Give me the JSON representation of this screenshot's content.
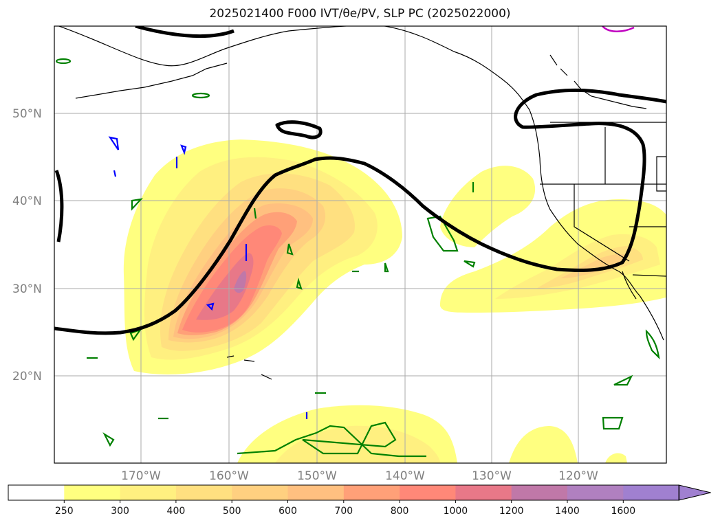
{
  "title": "2025021400 F000 IVT/θe/PV, SLP PC (2025022000)",
  "map": {
    "lat_labels": [
      "50°N",
      "40°N",
      "30°N",
      "20°N"
    ],
    "lon_labels": [
      "170°W",
      "160°W",
      "150°W",
      "140°W",
      "130°W",
      "120°W"
    ],
    "grid": true,
    "colors": {
      "slp_contour": "#000000",
      "pv_contour": "#008000",
      "theta_contour": "#0000ff",
      "magenta_contour": "#c000c0",
      "coastline": "#000000"
    }
  },
  "colorbar": {
    "levels": [
      "250",
      "300",
      "400",
      "500",
      "600",
      "700",
      "800",
      "1000",
      "1200",
      "1400",
      "1600"
    ],
    "colors": [
      "#ffffff",
      "#ffff80",
      "#fff080",
      "#ffe080",
      "#ffd080",
      "#ffc080",
      "#ffa078",
      "#ff8878",
      "#e87888",
      "#c078a8",
      "#b080c0",
      "#a080d0"
    ],
    "extend": "max"
  }
}
